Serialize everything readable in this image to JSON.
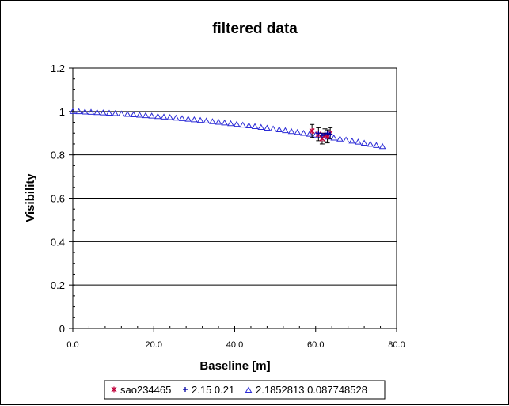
{
  "chart_data": {
    "type": "scatter",
    "title": "filtered data",
    "xlabel": "Baseline [m]",
    "ylabel": "Visibility",
    "xlim": [
      0,
      80
    ],
    "ylim": [
      0,
      1.2
    ],
    "xticks": [
      0,
      20,
      40,
      60,
      80
    ],
    "xtick_labels": [
      "0.0",
      "20.0",
      "40.0",
      "60.0",
      "80.0"
    ],
    "yticks": [
      0,
      0.2,
      0.4,
      0.6,
      0.8,
      1,
      1.2
    ],
    "ytick_labels": [
      "0",
      "0.2",
      "0.4",
      "0.6",
      "0.8",
      "1",
      "1.2"
    ],
    "grid": "horizontal major lines",
    "legend_position": "bottom",
    "series": [
      {
        "name": "sao234465",
        "marker": "star",
        "color": "#c0003a",
        "points": [
          [
            59.1,
            0.91
          ],
          [
            60.7,
            0.895
          ],
          [
            61.6,
            0.875
          ],
          [
            62.3,
            0.89
          ],
          [
            62.9,
            0.885
          ],
          [
            63.6,
            0.9
          ]
        ],
        "errors": [
          0.03,
          0.03,
          0.025,
          0.03,
          0.03,
          0.025
        ]
      },
      {
        "name": "2.15 0.21",
        "marker": "plus",
        "color": "#0000a0",
        "points": [
          [
            60.7,
            0.9
          ],
          [
            61.6,
            0.89
          ],
          [
            62.3,
            0.897
          ],
          [
            62.9,
            0.9
          ],
          [
            63.6,
            0.895
          ]
        ]
      },
      {
        "name": "2.1852813 0.087748528",
        "marker": "triangle",
        "color": "#2b2bd6",
        "x_start": 0,
        "x_step": 1.5,
        "x_end": 76.5,
        "y_at_zero": 1.0,
        "y_at_end": 0.838
      }
    ]
  }
}
